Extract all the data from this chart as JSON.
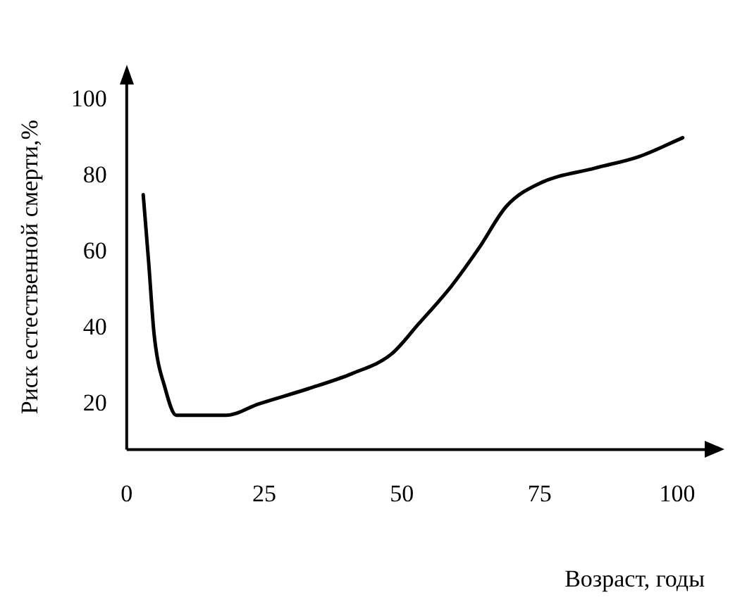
{
  "chart_data": {
    "type": "line",
    "xlabel": "Возраст, годы",
    "ylabel": "Риск естественной смерти,%",
    "x": [
      3,
      4,
      5,
      7,
      9,
      13,
      18,
      24,
      33,
      41,
      48,
      53,
      59,
      64,
      69,
      75,
      85,
      93,
      101
    ],
    "series": [
      {
        "color": "#000000",
        "values": [
          75,
          57,
          38,
          24,
          17,
          17,
          17,
          20,
          24,
          28,
          33,
          41,
          51,
          61,
          72,
          78,
          82,
          85,
          90
        ]
      }
    ],
    "xlim": [
      0,
      105
    ],
    "xticks": [
      0,
      25,
      50,
      75,
      100
    ],
    "ylim": [
      8,
      104
    ],
    "yticks": [
      20,
      40,
      60,
      80,
      100
    ],
    "grid": false,
    "legend": false,
    "marker": "none",
    "line_style": "solid"
  }
}
